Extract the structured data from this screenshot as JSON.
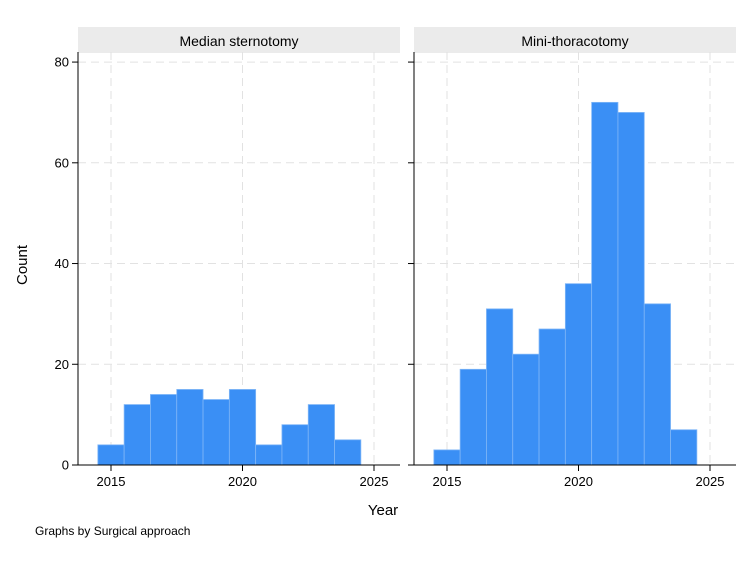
{
  "chart_data": {
    "type": "bar",
    "subtype": "histogram-by-panel",
    "by_note": "Graphs by Surgical approach",
    "xlabel": "Year",
    "ylabel": "Count",
    "xlim": [
      2014,
      2025.3
    ],
    "ylim": [
      0,
      82
    ],
    "xticks": [
      "2015",
      "2020",
      "2025"
    ],
    "yticks": [
      "0",
      "20",
      "40",
      "60",
      "80"
    ],
    "grid": "dashed",
    "bar_color": "#3a8ff5",
    "bin_width": 1,
    "bin_starts": [
      2014.5,
      2015.5,
      2016.5,
      2017.5,
      2018.5,
      2019.5,
      2020.5,
      2021.5,
      2022.5,
      2023.5
    ],
    "panels": [
      {
        "title": "Median sternotomy",
        "values": [
          4,
          12,
          14,
          15,
          13,
          15,
          4,
          8,
          12,
          5
        ]
      },
      {
        "title": "Mini-thoracotomy",
        "values": [
          3,
          19,
          31,
          22,
          27,
          36,
          72,
          70,
          32,
          7
        ]
      }
    ]
  }
}
